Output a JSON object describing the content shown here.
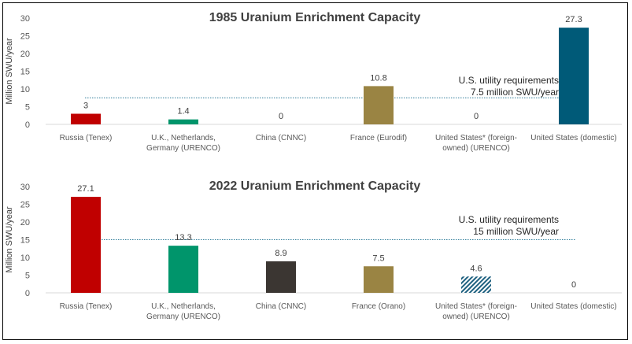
{
  "chart_data": [
    {
      "type": "bar",
      "title": "1985 Uranium Enrichment Capacity",
      "ylabel": "Million SWU/year",
      "xlabel": "",
      "ylim": [
        0,
        30
      ],
      "yticks": [
        0,
        5,
        10,
        15,
        20,
        25,
        30
      ],
      "grid": false,
      "categories": [
        [
          "Russia (Tenex)"
        ],
        [
          "U.K., Netherlands,",
          "Germany (URENCO)"
        ],
        [
          "China (CNNC)"
        ],
        [
          "France (Eurodif)"
        ],
        [
          "United States* (foreign-",
          "owned) (URENCO)"
        ],
        [
          "United States (domestic)"
        ]
      ],
      "values": [
        3,
        1.4,
        0,
        10.8,
        0,
        27.3
      ],
      "data_labels": [
        "3",
        "1.4",
        "0",
        "10.8",
        "0",
        "27.3"
      ],
      "colors": [
        "#C00000",
        "#00956B",
        "#3B3632",
        "#9A8443",
        "#1F6180",
        "#005A78"
      ],
      "hatched": [
        false,
        false,
        false,
        false,
        false,
        false
      ],
      "reference_line": {
        "value": 7.5,
        "style": "dotted",
        "color": "#2E7D9A",
        "label": [
          "U.S. utility requirements",
          "7.5 million SWU/year"
        ]
      }
    },
    {
      "type": "bar",
      "title": "2022 Uranium Enrichment Capacity",
      "ylabel": "Million SWU/year",
      "xlabel": "",
      "ylim": [
        0,
        30
      ],
      "yticks": [
        0,
        5,
        10,
        15,
        20,
        25,
        30
      ],
      "grid": false,
      "categories": [
        [
          "Russia (Tenex)"
        ],
        [
          "U.K., Netherlands,",
          "Germany (URENCO)"
        ],
        [
          "China (CNNC)"
        ],
        [
          "France (Orano)"
        ],
        [
          "United States* (foreign-",
          "owned) (URENCO)"
        ],
        [
          "United States (domestic)"
        ]
      ],
      "values": [
        27.1,
        13.3,
        8.9,
        7.5,
        4.6,
        0
      ],
      "data_labels": [
        "27.1",
        "13.3",
        "8.9",
        "7.5",
        "4.6",
        "0"
      ],
      "colors": [
        "#C00000",
        "#00956B",
        "#3B3632",
        "#9A8443",
        "#1F6180",
        "#005A78"
      ],
      "hatched": [
        false,
        false,
        false,
        false,
        true,
        false
      ],
      "reference_line": {
        "value": 15,
        "style": "dotted",
        "color": "#2E7D9A",
        "label": [
          "U.S. utility requirements",
          "15 million SWU/year"
        ]
      }
    }
  ]
}
